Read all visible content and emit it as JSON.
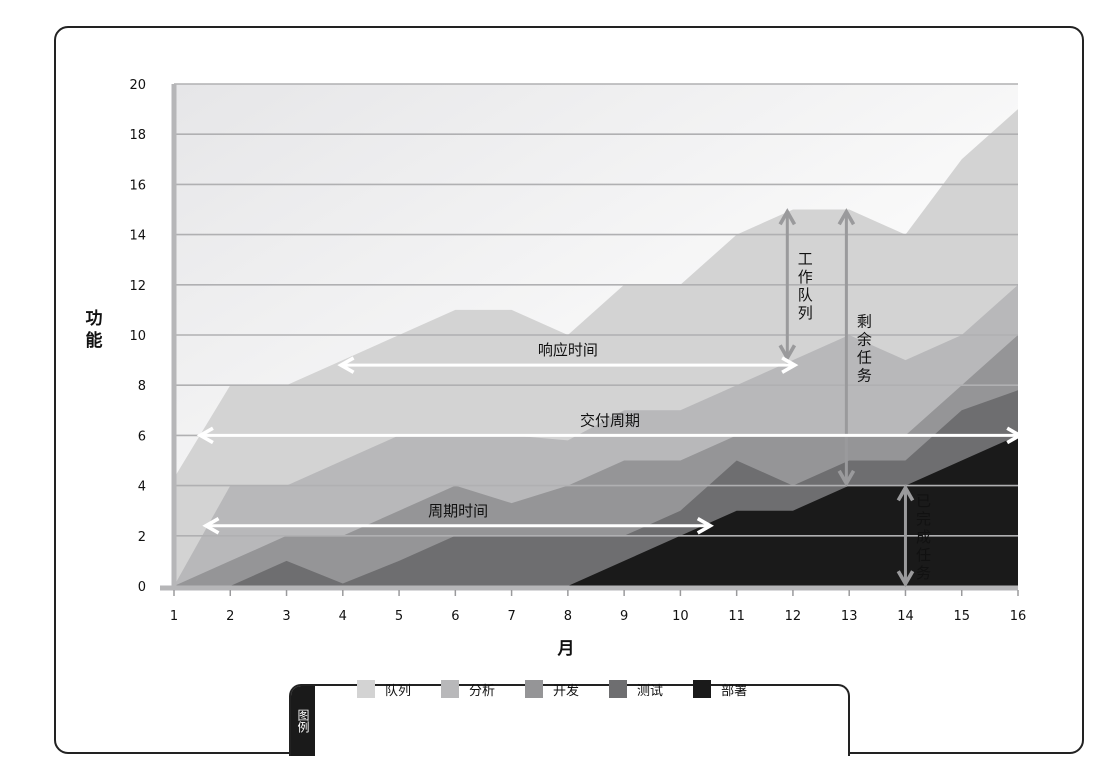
{
  "chart_data": {
    "type": "area",
    "ylabel": "功能",
    "xlabel": "月",
    "x": [
      1,
      2,
      3,
      4,
      5,
      6,
      7,
      8,
      9,
      10,
      11,
      12,
      13,
      14,
      15,
      16
    ],
    "ylim": [
      0,
      20
    ],
    "yticks": [
      0,
      2,
      4,
      6,
      8,
      10,
      12,
      14,
      16,
      18,
      20
    ],
    "grid": true,
    "series": [
      {
        "name": "队列",
        "color": "#d3d3d3",
        "values": [
          4.3,
          8,
          8,
          9,
          10,
          11,
          11,
          10,
          12,
          12,
          14,
          15,
          15,
          14,
          17,
          19
        ]
      },
      {
        "name": "分析",
        "color": "#b8b8ba",
        "values": [
          0,
          4,
          4,
          5,
          6,
          6,
          6,
          5.8,
          7,
          7,
          8,
          9,
          10,
          9,
          10,
          12
        ]
      },
      {
        "name": "开发",
        "color": "#959597",
        "values": [
          0,
          1,
          2,
          2,
          3,
          4,
          3.3,
          4,
          5,
          5,
          6,
          6,
          6,
          6,
          8,
          10
        ]
      },
      {
        "name": "测试",
        "color": "#6e6e70",
        "values": [
          0,
          0,
          1,
          0.1,
          1,
          2,
          2,
          2,
          2,
          3,
          5,
          4,
          5,
          5,
          7,
          7.8
        ]
      },
      {
        "name": "部署",
        "color": "#1a1a1a",
        "values": [
          0,
          0,
          0,
          0,
          0,
          0,
          0,
          0,
          1,
          2,
          3,
          3,
          4,
          4,
          5,
          6
        ]
      }
    ],
    "annotations": [
      {
        "text": "工作队列",
        "x": 11.9,
        "y0": 9,
        "y1": 15,
        "orientation": "vertical"
      },
      {
        "text": "剩余任务",
        "x": 12.95,
        "y0": 4,
        "y1": 15,
        "orientation": "vertical"
      },
      {
        "text": "已完成任务",
        "x": 14,
        "y0": 0,
        "y1": 4,
        "orientation": "vertical"
      },
      {
        "text": "响应时间",
        "y": 8.8,
        "x0": 4,
        "x1": 12,
        "orientation": "horizontal"
      },
      {
        "text": "交付周期",
        "y": 6,
        "x0": 1.5,
        "x1": 16,
        "orientation": "horizontal"
      },
      {
        "text": "周期时间",
        "y": 2.4,
        "x0": 1.6,
        "x1": 10.5,
        "orientation": "horizontal"
      }
    ],
    "legend": {
      "title": "图例",
      "position": "bottom"
    }
  }
}
